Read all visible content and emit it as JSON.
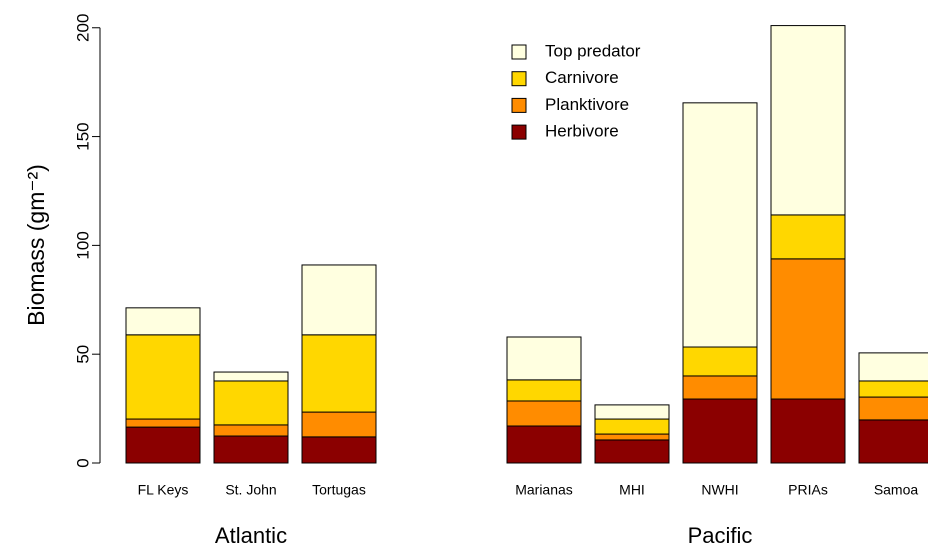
{
  "chart_data": {
    "type": "stacked_bar",
    "y_label": "Biomass (gm⁻²)",
    "groups": [
      {
        "label": "Atlantic",
        "categories": [
          "FL Keys",
          "St. John",
          "Tortugas"
        ]
      },
      {
        "label": "Pacific",
        "categories": [
          "Marianas",
          "MHI",
          "NWHI",
          "PRIAs",
          "Samoa"
        ]
      }
    ],
    "series": [
      {
        "name": "Herbivore",
        "color": "#8b0000",
        "values": [
          16.5,
          12.4,
          12,
          17,
          10.6,
          29.4,
          29.4,
          19.8
        ]
      },
      {
        "name": "Planktivore",
        "color": "#ff8c00",
        "values": [
          3.7,
          5.1,
          11.4,
          11.5,
          2.7,
          10.6,
          64.4,
          10.5
        ]
      },
      {
        "name": "Carnivore",
        "color": "#ffd700",
        "values": [
          38.7,
          20.2,
          35.5,
          9.7,
          6.9,
          13.3,
          20.2,
          7.4
        ]
      },
      {
        "name": "Top predator",
        "color": "#ffffe0",
        "values": [
          12.4,
          4.1,
          32.1,
          19.7,
          6.5,
          112.2,
          87,
          12.9
        ]
      }
    ],
    "ylim": [
      0,
      210
    ],
    "yticks": [
      0,
      50,
      100,
      150,
      200
    ],
    "legend": "top-left-of-pacific"
  }
}
